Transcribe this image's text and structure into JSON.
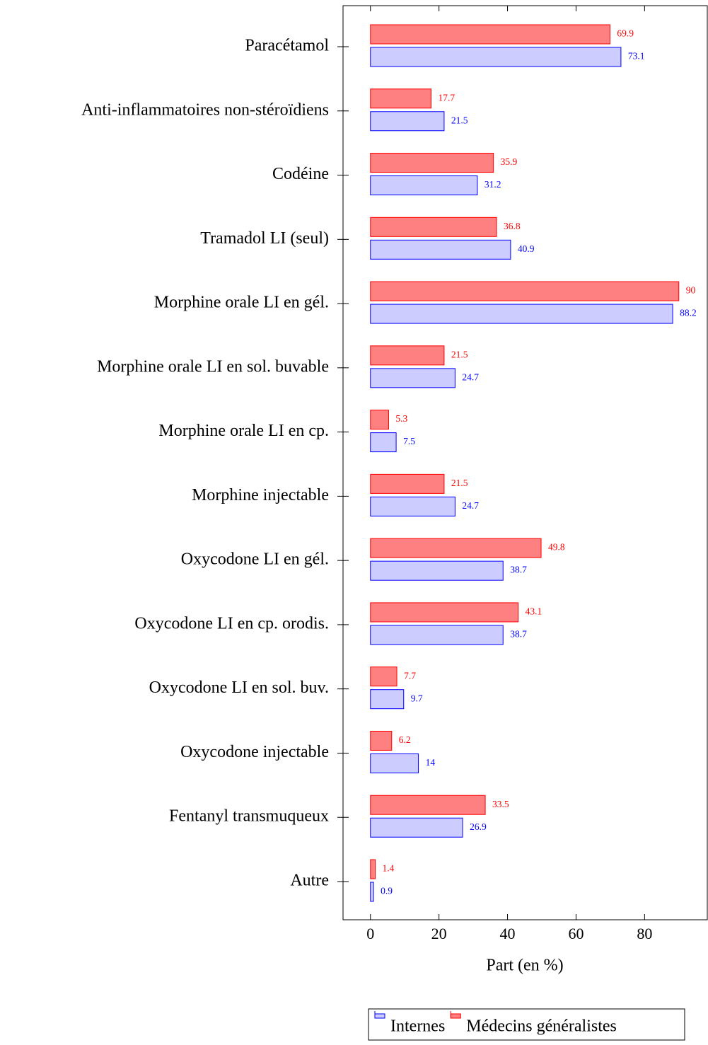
{
  "chart_data": {
    "type": "hbar",
    "x_label": "Part (en %)",
    "categories": [
      "Paracétamol",
      "Anti-inflammatoires non-stéroïdiens",
      "Codéine",
      "Tramadol LI (seul)",
      "Morphine orale LI en gél.",
      "Morphine orale LI en sol. buvable",
      "Morphine orale LI en cp.",
      "Morphine injectable",
      "Oxycodone LI en gél.",
      "Oxycodone LI en cp. orodis.",
      "Oxycodone LI en sol. buv.",
      "Oxycodone injectable",
      "Fentanyl transmuqueux",
      "Autre"
    ],
    "series": [
      {
        "name": "Internes",
        "color": "#ccccff",
        "edge_color": "#0000ff",
        "values": [
          73.1,
          21.5,
          31.2,
          40.9,
          88.2,
          24.7,
          7.5,
          24.7,
          38.7,
          38.7,
          9.7,
          14,
          26.9,
          0.9
        ]
      },
      {
        "name": "Médecins généralistes",
        "color": "#ff8080",
        "edge_color": "#ff0000",
        "values": [
          69.9,
          17.7,
          35.9,
          36.8,
          90,
          21.5,
          5.3,
          21.5,
          49.8,
          43.1,
          7.7,
          6.2,
          33.5,
          1.4
        ]
      }
    ],
    "xlim": [
      -8,
      98.3
    ],
    "xticks": [
      0,
      20,
      40,
      60,
      80
    ],
    "legend": "bottom"
  }
}
